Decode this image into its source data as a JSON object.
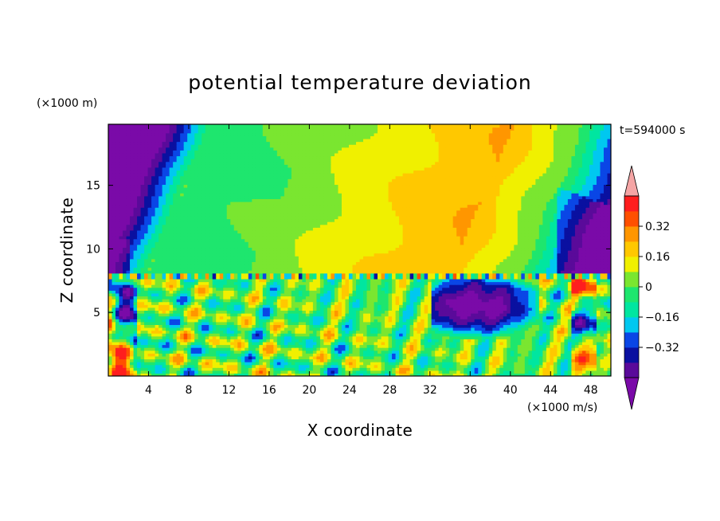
{
  "chart_data": {
    "type": "heatmap",
    "title": "potential temperature deviation",
    "xlabel": "X coordinate",
    "ylabel": "Z coordinate",
    "x_unit": "(×1000 m/s)",
    "y_unit": "(×1000 m)",
    "time_label": "t=594000 s",
    "x_range": [
      0,
      50
    ],
    "y_range": [
      0,
      19.8
    ],
    "x_ticks": [
      4,
      8,
      12,
      16,
      20,
      24,
      28,
      32,
      36,
      40,
      44,
      48
    ],
    "y_ticks": [
      5,
      10,
      15
    ],
    "colorbar": {
      "levels": [
        -0.48,
        -0.4,
        -0.32,
        -0.24,
        -0.16,
        -0.08,
        0,
        0.08,
        0.16,
        0.24,
        0.32,
        0.4
      ],
      "labeled_levels": [
        0.32,
        0.16,
        0,
        -0.16,
        -0.32
      ],
      "labels": [
        "0.32",
        "0.16",
        "0",
        "−0.16",
        "−0.32"
      ],
      "colors": [
        "#7a0aa8",
        "#5a0a9a",
        "#0a10a0",
        "#0a46e6",
        "#00c8f0",
        "#00e6a0",
        "#1ee66e",
        "#7ae630",
        "#f0f000",
        "#ffc800",
        "#ff9600",
        "#ff5000",
        "#ff1e1e",
        "#f5a5a5"
      ],
      "extend": "both"
    },
    "description_fields": {
      "upper_layer": "smooth broad bands, tilted; negative at left/right edges, positive near x=30-40",
      "lower_layer": "turbulent eddies below z≈8.2"
    }
  }
}
